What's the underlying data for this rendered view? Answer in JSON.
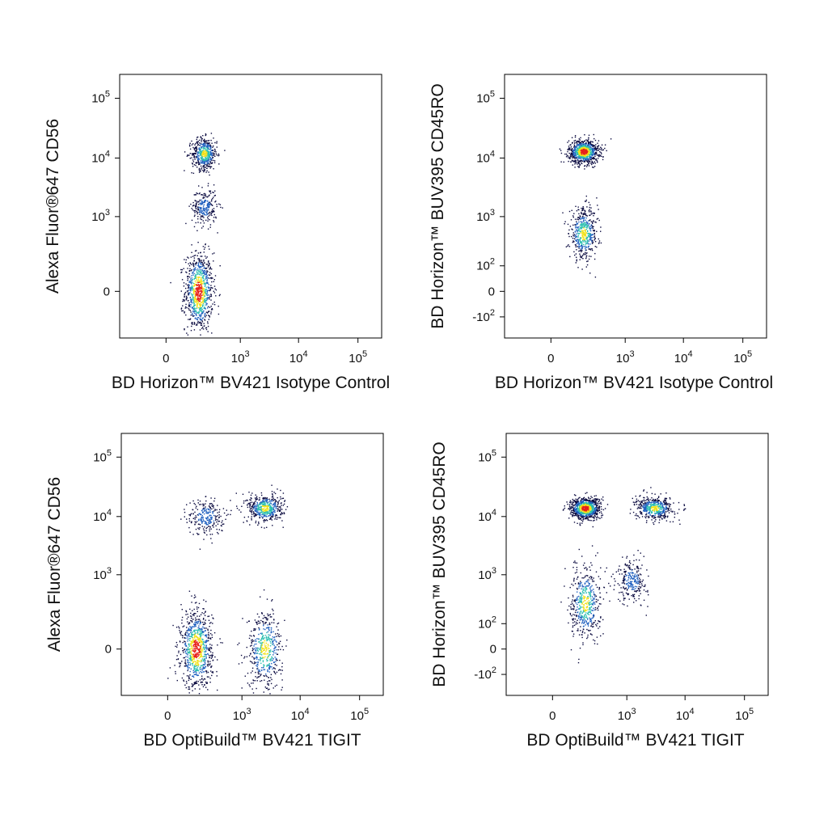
{
  "colors": {
    "density_low": "#0b0b40",
    "density_mid_low": "#1f5fbf",
    "density_mid": "#2bbfb0",
    "density_mid_high": "#f2e21a",
    "density_high": "#e8201a",
    "frame": "#000000",
    "background": "#ffffff"
  },
  "chart_data": [
    {
      "type": "scatter",
      "title": "",
      "xlabel": "BD Horizon™ BV421 Isotype Control",
      "ylabel": "Alexa Fluor®647 CD56",
      "x_scale": "biexponential",
      "y_scale": "biexponential",
      "xlim": [
        -200,
        200000
      ],
      "ylim": [
        -200,
        200000
      ],
      "x_ticks": [
        {
          "base": "0",
          "exp": ""
        },
        {
          "base": "10",
          "exp": "3"
        },
        {
          "base": "10",
          "exp": "4"
        },
        {
          "base": "10",
          "exp": "5"
        }
      ],
      "y_ticks": [
        {
          "base": "0",
          "exp": ""
        },
        {
          "base": "10",
          "exp": "3"
        },
        {
          "base": "10",
          "exp": "4"
        },
        {
          "base": "10",
          "exp": "5"
        }
      ],
      "grid": false,
      "legend": "none",
      "populations": [
        {
          "x_center": 150,
          "y_center": 0,
          "x_spread": 120,
          "y_spread": 150,
          "relative_density": "high"
        },
        {
          "x_center": 200,
          "y_center": 12000,
          "x_spread": 130,
          "y_spread": 8000,
          "relative_density": "medium"
        },
        {
          "x_center": 200,
          "y_center": 1500,
          "x_spread": 130,
          "y_spread": 1200,
          "relative_density": "low"
        }
      ]
    },
    {
      "type": "scatter",
      "title": "",
      "xlabel": "BD Horizon™ BV421 Isotype Control",
      "ylabel": "BD Horizon™ BUV395 CD45RO",
      "x_scale": "biexponential",
      "y_scale": "biexponential",
      "xlim": [
        -200,
        200000
      ],
      "ylim": [
        -200,
        200000
      ],
      "x_ticks": [
        {
          "base": "0",
          "exp": ""
        },
        {
          "base": "10",
          "exp": "3"
        },
        {
          "base": "10",
          "exp": "4"
        },
        {
          "base": "10",
          "exp": "5"
        }
      ],
      "y_ticks": [
        {
          "base": "-10",
          "exp": "2"
        },
        {
          "base": "0",
          "exp": ""
        },
        {
          "base": "10",
          "exp": "2"
        },
        {
          "base": "10",
          "exp": "3"
        },
        {
          "base": "10",
          "exp": "4"
        },
        {
          "base": "10",
          "exp": "5"
        }
      ],
      "grid": false,
      "legend": "none",
      "populations": [
        {
          "x_center": 150,
          "y_center": 13000,
          "x_spread": 130,
          "y_spread": 6000,
          "relative_density": "high"
        },
        {
          "x_center": 150,
          "y_center": 500,
          "x_spread": 120,
          "y_spread": 700,
          "relative_density": "medium"
        }
      ]
    },
    {
      "type": "scatter",
      "title": "",
      "xlabel": "BD OptiBuild™ BV421 TIGIT",
      "ylabel": "Alexa Fluor®647 CD56",
      "x_scale": "biexponential",
      "y_scale": "biexponential",
      "xlim": [
        -200,
        200000
      ],
      "ylim": [
        -200,
        200000
      ],
      "x_ticks": [
        {
          "base": "0",
          "exp": ""
        },
        {
          "base": "10",
          "exp": "3"
        },
        {
          "base": "10",
          "exp": "4"
        },
        {
          "base": "10",
          "exp": "5"
        }
      ],
      "y_ticks": [
        {
          "base": "0",
          "exp": ""
        },
        {
          "base": "10",
          "exp": "3"
        },
        {
          "base": "10",
          "exp": "4"
        },
        {
          "base": "10",
          "exp": "5"
        }
      ],
      "grid": false,
      "legend": "none",
      "populations": [
        {
          "x_center": 120,
          "y_center": 0,
          "x_spread": 120,
          "y_spread": 150,
          "relative_density": "high"
        },
        {
          "x_center": 2500,
          "y_center": 0,
          "x_spread": 2000,
          "y_spread": 150,
          "relative_density": "medium"
        },
        {
          "x_center": 2500,
          "y_center": 14000,
          "x_spread": 2000,
          "y_spread": 8000,
          "relative_density": "medium"
        },
        {
          "x_center": 200,
          "y_center": 10000,
          "x_spread": 200,
          "y_spread": 8000,
          "relative_density": "low"
        }
      ]
    },
    {
      "type": "scatter",
      "title": "",
      "xlabel": "BD OptiBuild™ BV421 TIGIT",
      "ylabel": "BD Horizon™ BUV395 CD45RO",
      "x_scale": "biexponential",
      "y_scale": "biexponential",
      "xlim": [
        -200,
        200000
      ],
      "ylim": [
        -200,
        200000
      ],
      "x_ticks": [
        {
          "base": "0",
          "exp": ""
        },
        {
          "base": "10",
          "exp": "3"
        },
        {
          "base": "10",
          "exp": "4"
        },
        {
          "base": "10",
          "exp": "5"
        }
      ],
      "y_ticks": [
        {
          "base": "-10",
          "exp": "2"
        },
        {
          "base": "0",
          "exp": ""
        },
        {
          "base": "10",
          "exp": "2"
        },
        {
          "base": "10",
          "exp": "3"
        },
        {
          "base": "10",
          "exp": "4"
        },
        {
          "base": "10",
          "exp": "5"
        }
      ],
      "grid": false,
      "legend": "none",
      "populations": [
        {
          "x_center": 150,
          "y_center": 14000,
          "x_spread": 130,
          "y_spread": 5000,
          "relative_density": "high"
        },
        {
          "x_center": 3000,
          "y_center": 14000,
          "x_spread": 2500,
          "y_spread": 6000,
          "relative_density": "medium"
        },
        {
          "x_center": 150,
          "y_center": 300,
          "x_spread": 130,
          "y_spread": 800,
          "relative_density": "medium"
        },
        {
          "x_center": 1200,
          "y_center": 800,
          "x_spread": 800,
          "y_spread": 900,
          "relative_density": "low"
        }
      ]
    }
  ]
}
